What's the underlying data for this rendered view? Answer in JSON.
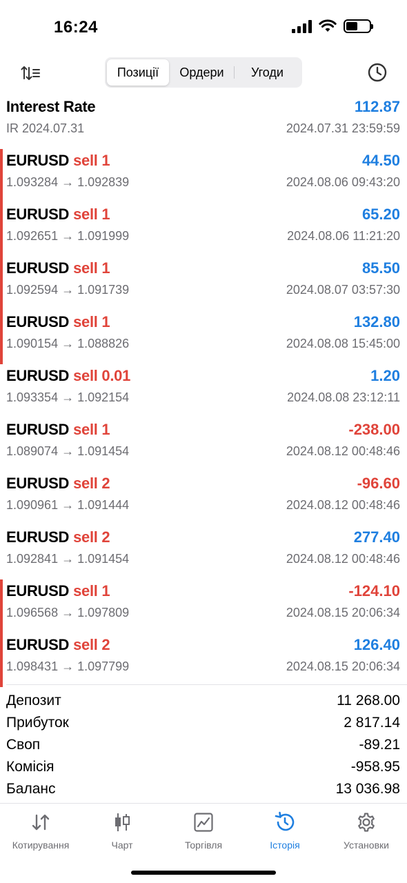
{
  "status": {
    "time": "16:24"
  },
  "tabs_top": [
    "Позиції",
    "Ордери",
    "Угоди"
  ],
  "rows": [
    {
      "symbol": "Interest Rate",
      "side": "",
      "prices": "IR 2024.07.31",
      "amount": "112.87",
      "date": "2024.07.31 23:59:59",
      "positive": true,
      "marked": false
    },
    {
      "symbol": "EURUSD",
      "side": "sell 1",
      "prices": "1.093284 → 1.092839",
      "amount": "44.50",
      "date": "2024.08.06 09:43:20",
      "positive": true,
      "marked": true
    },
    {
      "symbol": "EURUSD",
      "side": "sell 1",
      "prices": "1.092651 → 1.091999",
      "amount": "65.20",
      "date": "2024.08.06 11:21:20",
      "positive": true,
      "marked": true
    },
    {
      "symbol": "EURUSD",
      "side": "sell 1",
      "prices": "1.092594 → 1.091739",
      "amount": "85.50",
      "date": "2024.08.07 03:57:30",
      "positive": true,
      "marked": true
    },
    {
      "symbol": "EURUSD",
      "side": "sell 1",
      "prices": "1.090154 → 1.088826",
      "amount": "132.80",
      "date": "2024.08.08 15:45:00",
      "positive": true,
      "marked": true
    },
    {
      "symbol": "EURUSD",
      "side": "sell 0.01",
      "prices": "1.093354 → 1.092154",
      "amount": "1.20",
      "date": "2024.08.08 23:12:11",
      "positive": true,
      "marked": false
    },
    {
      "symbol": "EURUSD",
      "side": "sell 1",
      "prices": "1.089074 → 1.091454",
      "amount": "-238.00",
      "date": "2024.08.12 00:48:46",
      "positive": false,
      "marked": false
    },
    {
      "symbol": "EURUSD",
      "side": "sell 2",
      "prices": "1.090961 → 1.091444",
      "amount": "-96.60",
      "date": "2024.08.12 00:48:46",
      "positive": false,
      "marked": false
    },
    {
      "symbol": "EURUSD",
      "side": "sell 2",
      "prices": "1.092841 → 1.091454",
      "amount": "277.40",
      "date": "2024.08.12 00:48:46",
      "positive": true,
      "marked": false
    },
    {
      "symbol": "EURUSD",
      "side": "sell 1",
      "prices": "1.096568 → 1.097809",
      "amount": "-124.10",
      "date": "2024.08.15 20:06:34",
      "positive": false,
      "marked": true
    },
    {
      "symbol": "EURUSD",
      "side": "sell 2",
      "prices": "1.098431 → 1.097799",
      "amount": "126.40",
      "date": "2024.08.15 20:06:34",
      "positive": true,
      "marked": true
    }
  ],
  "summary": [
    {
      "label": "Депозит",
      "value": "11 268.00"
    },
    {
      "label": "Прибуток",
      "value": "2 817.14"
    },
    {
      "label": "Своп",
      "value": "-89.21"
    },
    {
      "label": "Комісія",
      "value": "-958.95"
    },
    {
      "label": "Баланс",
      "value": "13 036.98"
    }
  ],
  "tabbar": [
    {
      "label": "Котирування",
      "icon": "quotes-icon",
      "active": false
    },
    {
      "label": "Чарт",
      "icon": "candlestick-icon",
      "active": false
    },
    {
      "label": "Торгівля",
      "icon": "trade-chart-icon",
      "active": false
    },
    {
      "label": "Історія",
      "icon": "history-icon",
      "active": true
    },
    {
      "label": "Установки",
      "icon": "gear-icon",
      "active": false
    }
  ],
  "colors": {
    "positive": "#1f7fe0",
    "negative": "#e0443a",
    "accent": "#1f7fe0",
    "muted": "#6d6d72"
  }
}
